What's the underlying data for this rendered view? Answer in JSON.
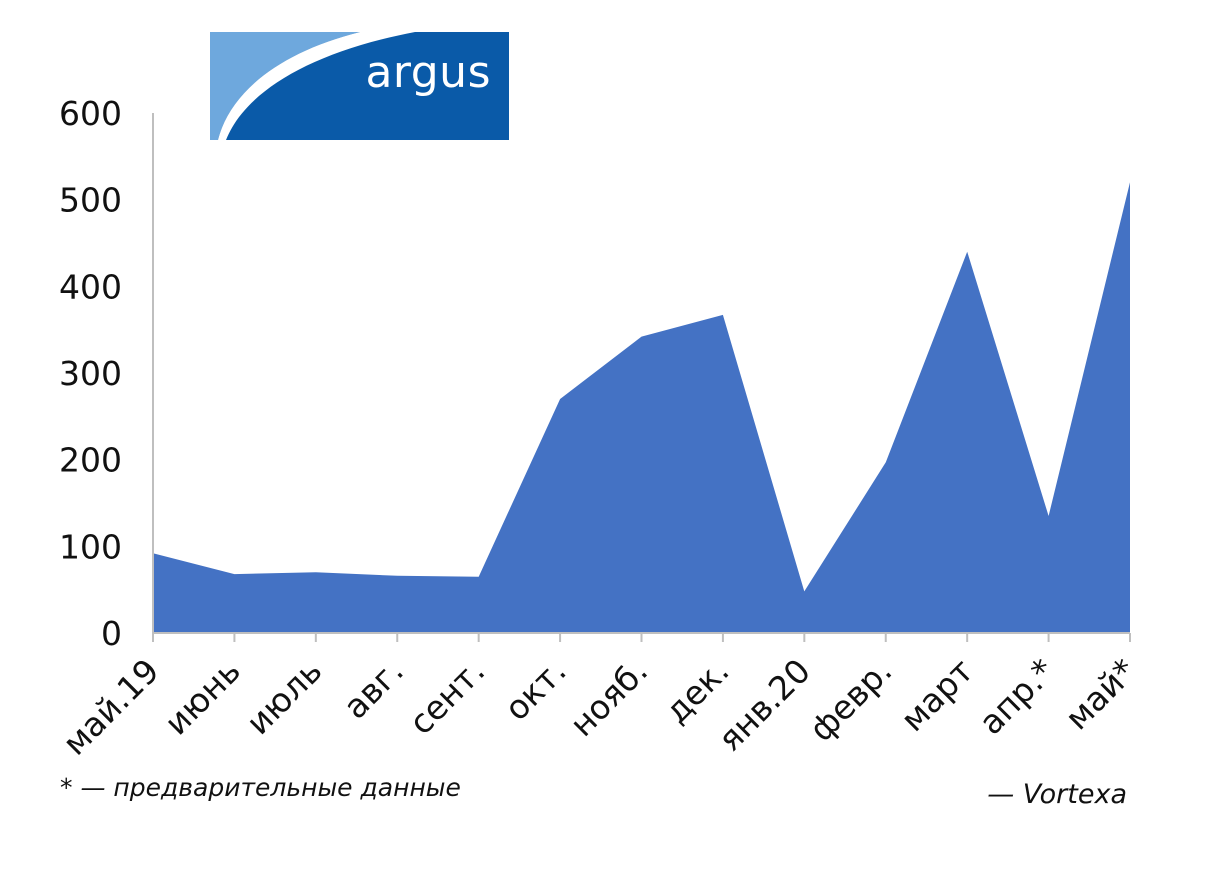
{
  "chart_data": {
    "type": "area",
    "categories": [
      "май.19",
      "июнь",
      "июль",
      "авг.",
      "сент.",
      "окт.",
      "нояб.",
      "дек.",
      "янв.20",
      "февр.",
      "март",
      "апр.*",
      "май*"
    ],
    "values": [
      92,
      68,
      70,
      66,
      65,
      270,
      342,
      367,
      48,
      197,
      440,
      135,
      520
    ],
    "ylim": [
      0,
      600
    ],
    "yticks": [
      0,
      100,
      200,
      300,
      400,
      500,
      600
    ],
    "grid": false,
    "legend": false,
    "colors": {
      "area": "#4472c4",
      "axis": "#bfbfbf"
    }
  },
  "footnote": "* — предварительные данные",
  "source": "— Vortexa",
  "logo": {
    "text": "argus",
    "colors": {
      "dark": "#0a5aa8",
      "light": "#6ea8dd",
      "band": "#ffffff"
    }
  }
}
